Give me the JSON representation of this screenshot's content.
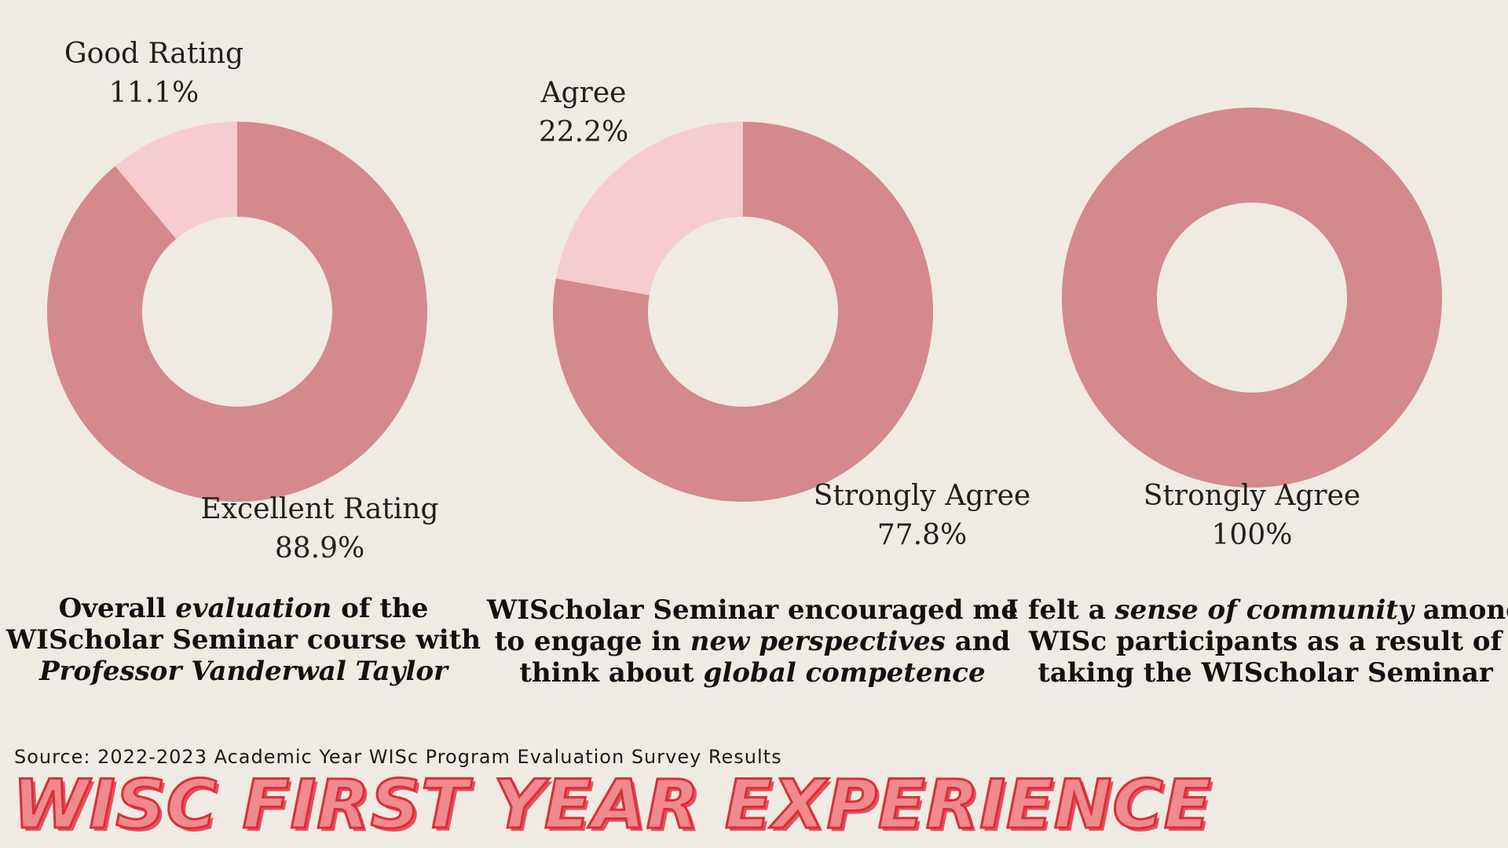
{
  "chart_data": [
    {
      "type": "pie",
      "variant": "donut",
      "categories": [
        "Excellent Rating",
        "Good Rating"
      ],
      "values": [
        88.9,
        11.1
      ],
      "value_labels": [
        "88.9%",
        "11.1%"
      ],
      "colors": [
        "#d4898a",
        "#f6ccd0"
      ],
      "caption": {
        "line1": [
          "Overall ",
          "evaluation",
          " of the"
        ],
        "line2": "WIScholar Seminar course with",
        "line3": "Professor Vanderwal Taylor"
      }
    },
    {
      "type": "pie",
      "variant": "donut",
      "categories": [
        "Strongly Agree",
        "Agree"
      ],
      "values": [
        77.8,
        22.2
      ],
      "value_labels": [
        "77.8%",
        "22.2%"
      ],
      "colors": [
        "#d4898a",
        "#f6ccd0"
      ],
      "caption": {
        "line1": "WIScholar Seminar encouraged me",
        "line2": [
          "to engage in ",
          "new perspectives",
          " and"
        ],
        "line3": [
          "think about ",
          "global competence"
        ]
      }
    },
    {
      "type": "pie",
      "variant": "donut",
      "categories": [
        "Strongly Agree"
      ],
      "values": [
        100
      ],
      "value_labels": [
        "100%"
      ],
      "colors": [
        "#d4898a"
      ],
      "caption": {
        "line1": [
          "I felt a ",
          "sense of community",
          " among"
        ],
        "line2": "WISc participants as a result of",
        "line3": "taking the WIScholar Seminar"
      }
    }
  ],
  "source": "Source: 2022-2023 Academic Year WISc Program Evaluation Survey Results",
  "title": "WISC FIRST YEAR EXPERIENCE"
}
